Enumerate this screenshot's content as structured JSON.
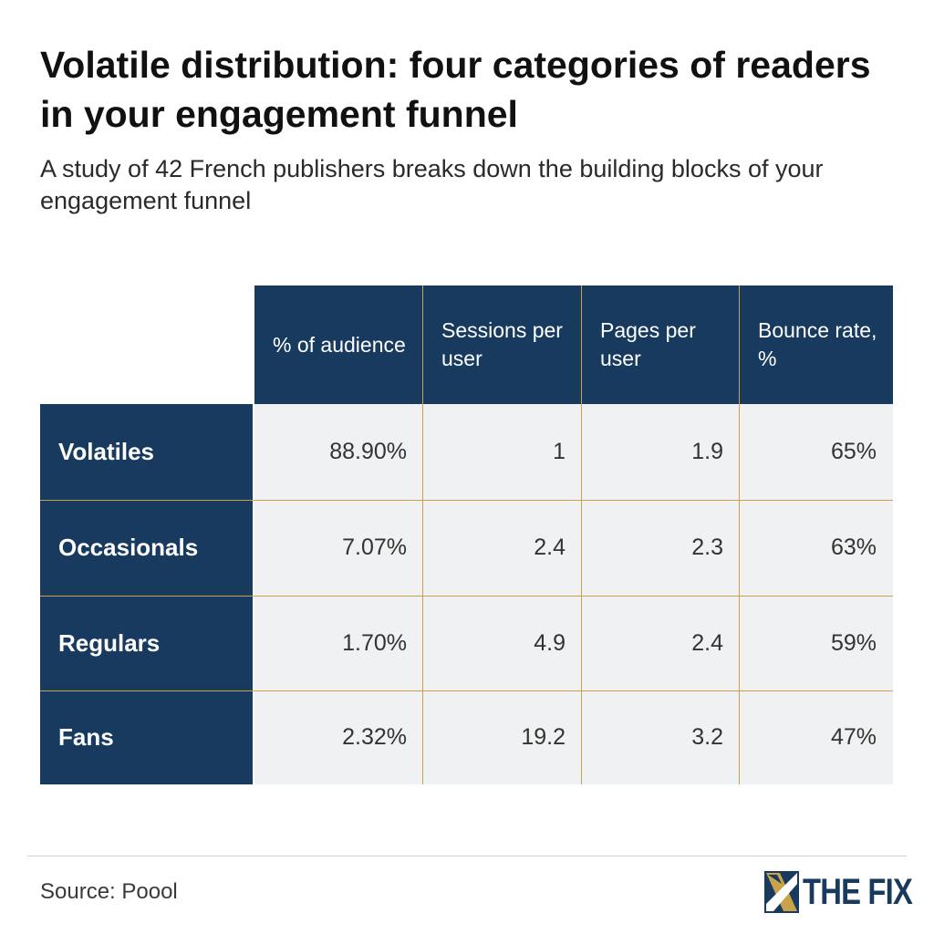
{
  "header": {
    "title": "Volatile distribution: four categories of readers in your engagement funnel",
    "subtitle": "A study of 42 French publishers breaks down the building blocks of your engagement funnel"
  },
  "chart_data": {
    "type": "table",
    "columns": [
      "% of audience",
      "Sessions per user",
      "Pages per user",
      "Bounce rate, %"
    ],
    "rows": [
      {
        "label": "Volatiles",
        "values": [
          "88.90%",
          "1",
          "1.9",
          "65%"
        ]
      },
      {
        "label": "Occasionals",
        "values": [
          "7.07%",
          "2.4",
          "2.3",
          "63%"
        ]
      },
      {
        "label": "Regulars",
        "values": [
          "1.70%",
          "4.9",
          "2.4",
          "59%"
        ]
      },
      {
        "label": "Fans",
        "values": [
          "2.32%",
          "19.2",
          "3.2",
          "47%"
        ]
      }
    ]
  },
  "footer": {
    "source": "Source: Poool",
    "logo_text": "THE FIX"
  },
  "colors": {
    "header_bg": "#173a5e",
    "cell_bg": "#f0f1f2",
    "grid_line": "#c9a34a"
  }
}
